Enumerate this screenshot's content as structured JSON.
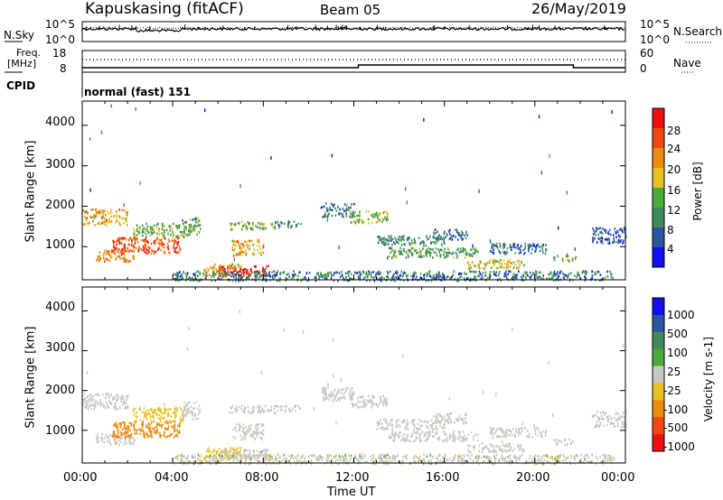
{
  "header": {
    "station": "Kapuskasing (fitACF)",
    "beam": "Beam 05",
    "date": "26/May/2019"
  },
  "top_panels": {
    "nsky": {
      "label": "N.Sky",
      "ticks": [
        "10^5",
        "10^0"
      ]
    },
    "nsearch": {
      "label": "N.Search",
      "ticks": [
        "10^5",
        "10^0"
      ]
    },
    "freq": {
      "label_line1": "Freq.",
      "label_line2": "[MHz]",
      "ticks": [
        "18",
        "8"
      ]
    },
    "nave": {
      "label": "Nave",
      "ticks": [
        "60",
        "0"
      ]
    },
    "cpid": {
      "label": "CPID",
      "value": "normal (fast) 151"
    }
  },
  "colors": {
    "power": [
      "#1010ee",
      "#2a55a5",
      "#3e8c5e",
      "#4aaa3a",
      "#e8c020",
      "#ee8a10",
      "#ee4a10",
      "#ee1010"
    ],
    "velocity": [
      "#1010ee",
      "#2a55a5",
      "#3e8c5e",
      "#4aaa3a",
      "#c8c8c0",
      "#e8c020",
      "#ee8a10",
      "#ee4a10",
      "#ee1010"
    ]
  },
  "chart_data": [
    {
      "type": "heatmap",
      "title": "Power",
      "xlabel": "Time UT",
      "ylabel": "Slant Range [km]",
      "x_ticks": [
        "00:00",
        "04:00",
        "08:00",
        "12:00",
        "16:00",
        "20:00",
        "00:00"
      ],
      "y_ticks": [
        "1000",
        "2000",
        "3000",
        "4000"
      ],
      "ylim": [
        180,
        4600
      ],
      "colorbar": {
        "label": "Power [dB]",
        "ticks": [
          "4",
          "8",
          "12",
          "16",
          "20",
          "24",
          "28"
        ],
        "range": [
          0,
          32
        ]
      },
      "regions": [
        {
          "t0": 0.0,
          "t1": 2.0,
          "r0": 1550,
          "r1": 1950,
          "v": 20
        },
        {
          "t0": 0.6,
          "t1": 2.3,
          "r0": 650,
          "r1": 950,
          "v": 22
        },
        {
          "t0": 1.3,
          "t1": 4.3,
          "r0": 850,
          "r1": 1250,
          "v": 26
        },
        {
          "t0": 2.2,
          "t1": 4.5,
          "r0": 1250,
          "r1": 1600,
          "v": 14
        },
        {
          "t0": 4.4,
          "t1": 5.2,
          "r0": 1300,
          "r1": 1750,
          "v": 12
        },
        {
          "t0": 5.3,
          "t1": 7.0,
          "r0": 300,
          "r1": 600,
          "v": 20
        },
        {
          "t0": 6.0,
          "t1": 8.2,
          "r0": 300,
          "r1": 550,
          "v": 30
        },
        {
          "t0": 6.5,
          "t1": 8.5,
          "r0": 1450,
          "r1": 1650,
          "v": 14
        },
        {
          "t0": 6.6,
          "t1": 8.0,
          "r0": 800,
          "r1": 1200,
          "v": 20
        },
        {
          "t0": 8.5,
          "t1": 9.7,
          "r0": 1500,
          "r1": 1650,
          "v": 8
        },
        {
          "t0": 10.5,
          "t1": 12.0,
          "r0": 1750,
          "r1": 2100,
          "v": 8
        },
        {
          "t0": 11.8,
          "t1": 13.5,
          "r0": 1600,
          "r1": 1900,
          "v": 16
        },
        {
          "t0": 13.0,
          "t1": 16.0,
          "r0": 1050,
          "r1": 1300,
          "v": 10
        },
        {
          "t0": 13.5,
          "t1": 17.5,
          "r0": 750,
          "r1": 1000,
          "v": 12
        },
        {
          "t0": 15.5,
          "t1": 17.0,
          "r0": 1200,
          "r1": 1450,
          "v": 8
        },
        {
          "t0": 17.0,
          "t1": 19.5,
          "r0": 480,
          "r1": 700,
          "v": 18
        },
        {
          "t0": 18.0,
          "t1": 20.5,
          "r0": 850,
          "r1": 1100,
          "v": 8
        },
        {
          "t0": 20.8,
          "t1": 21.8,
          "r0": 650,
          "r1": 800,
          "v": 16
        },
        {
          "t0": 22.5,
          "t1": 24.0,
          "r0": 1100,
          "r1": 1500,
          "v": 6
        },
        {
          "t0": 4.0,
          "t1": 23.5,
          "r0": 180,
          "r1": 420,
          "v": 6
        }
      ]
    },
    {
      "type": "heatmap",
      "title": "Velocity",
      "xlabel": "Time UT",
      "ylabel": "Slant Range [km]",
      "x_ticks": [
        "00:00",
        "04:00",
        "08:00",
        "12:00",
        "16:00",
        "20:00",
        "00:00"
      ],
      "y_ticks": [
        "1000",
        "2000",
        "3000",
        "4000"
      ],
      "ylim": [
        180,
        4600
      ],
      "colorbar": {
        "label": "Velocity [m s-1]",
        "ticks": [
          "1000",
          "500",
          "100",
          "25",
          "-25",
          "-100",
          "-500",
          "-1000"
        ]
      },
      "regions": [
        {
          "t0": 0.0,
          "t1": 2.0,
          "r0": 1550,
          "r1": 1950,
          "v": 0
        },
        {
          "t0": 0.6,
          "t1": 2.3,
          "r0": 650,
          "r1": 950,
          "v": 0
        },
        {
          "t0": 1.3,
          "t1": 4.3,
          "r0": 850,
          "r1": 1250,
          "v": -200
        },
        {
          "t0": 2.2,
          "t1": 4.5,
          "r0": 1250,
          "r1": 1600,
          "v": -80
        },
        {
          "t0": 4.4,
          "t1": 5.2,
          "r0": 1300,
          "r1": 1750,
          "v": 0
        },
        {
          "t0": 5.3,
          "t1": 7.0,
          "r0": 300,
          "r1": 600,
          "v": -60
        },
        {
          "t0": 6.0,
          "t1": 8.2,
          "r0": 300,
          "r1": 550,
          "v": 10
        },
        {
          "t0": 6.5,
          "t1": 8.5,
          "r0": 1450,
          "r1": 1650,
          "v": 0
        },
        {
          "t0": 6.6,
          "t1": 8.0,
          "r0": 800,
          "r1": 1200,
          "v": 0
        },
        {
          "t0": 8.5,
          "t1": 9.7,
          "r0": 1500,
          "r1": 1650,
          "v": 0
        },
        {
          "t0": 10.5,
          "t1": 12.0,
          "r0": 1750,
          "r1": 2100,
          "v": 0
        },
        {
          "t0": 11.8,
          "t1": 13.5,
          "r0": 1600,
          "r1": 1900,
          "v": 0
        },
        {
          "t0": 13.0,
          "t1": 16.0,
          "r0": 1050,
          "r1": 1300,
          "v": 0
        },
        {
          "t0": 13.5,
          "t1": 17.5,
          "r0": 750,
          "r1": 1000,
          "v": 0
        },
        {
          "t0": 15.5,
          "t1": 17.0,
          "r0": 1200,
          "r1": 1450,
          "v": 0
        },
        {
          "t0": 17.0,
          "t1": 19.5,
          "r0": 480,
          "r1": 700,
          "v": 0
        },
        {
          "t0": 18.0,
          "t1": 20.5,
          "r0": 850,
          "r1": 1100,
          "v": 0
        },
        {
          "t0": 20.8,
          "t1": 21.8,
          "r0": 650,
          "r1": 800,
          "v": 0
        },
        {
          "t0": 22.5,
          "t1": 24.0,
          "r0": 1100,
          "r1": 1500,
          "v": 0
        },
        {
          "t0": 4.0,
          "t1": 23.5,
          "r0": 180,
          "r1": 420,
          "v": 0
        }
      ]
    }
  ]
}
